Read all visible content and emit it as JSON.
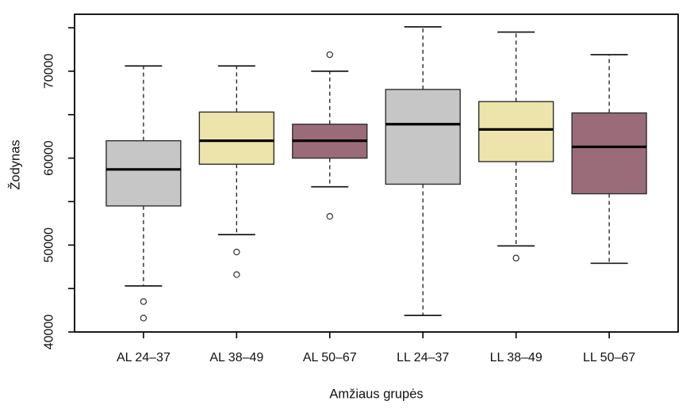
{
  "chart_data": {
    "type": "boxplot",
    "title": "",
    "xlabel": "Amžiaus grupės",
    "ylabel": "Žodynas",
    "categories": [
      "AL 24–37",
      "AL 38–49",
      "AL 50–67",
      "LL 24–37",
      "LL 38–49",
      "LL 50–67"
    ],
    "ylim": [
      40000,
      76550
    ],
    "yticks": [
      40000,
      45000,
      50000,
      55000,
      60000,
      65000,
      70000,
      75000
    ],
    "ytick_labels": [
      "40000",
      "",
      "50000",
      "",
      "60000",
      "",
      "70000",
      ""
    ],
    "grid": false,
    "legend": null,
    "series": [
      {
        "name": "AL 24–37",
        "fill": "#c6c6c6",
        "whisker_low": 45300,
        "q1": 54500,
        "median": 58700,
        "q3": 62000,
        "whisker_high": 70600,
        "outliers": [
          43500,
          41600
        ]
      },
      {
        "name": "AL 38–49",
        "fill": "#ede4ab",
        "whisker_low": 51200,
        "q1": 59300,
        "median": 62000,
        "q3": 65300,
        "whisker_high": 70600,
        "outliers": [
          49200,
          46600
        ]
      },
      {
        "name": "AL 50–67",
        "fill": "#9a6c7a",
        "whisker_low": 56700,
        "q1": 60000,
        "median": 62000,
        "q3": 63900,
        "whisker_high": 70000,
        "outliers": [
          71900,
          53300
        ]
      },
      {
        "name": "LL 24–37",
        "fill": "#c6c6c6",
        "whisker_low": 41900,
        "q1": 57000,
        "median": 63900,
        "q3": 67900,
        "whisker_high": 75100,
        "outliers": []
      },
      {
        "name": "LL 38–49",
        "fill": "#ede4ab",
        "whisker_low": 49900,
        "q1": 59600,
        "median": 63300,
        "q3": 66500,
        "whisker_high": 74500,
        "outliers": [
          48500
        ]
      },
      {
        "name": "LL 50–67",
        "fill": "#9a6c7a",
        "whisker_low": 47900,
        "q1": 55900,
        "median": 61300,
        "q3": 65200,
        "whisker_high": 71900,
        "outliers": []
      }
    ],
    "fill_by_age_group": {
      "24–37": "#c6c6c6",
      "38–49": "#ede4ab",
      "50–67": "#9a6c7a"
    }
  },
  "style": {
    "background": "#ffffff",
    "axis_color": "#000000",
    "box_border": "#2f2f2f",
    "median_color": "#000000",
    "whisker_color": "#1a1a1a",
    "outlier_stroke": "#2f2f2f",
    "tick_label_color": "#111111"
  }
}
